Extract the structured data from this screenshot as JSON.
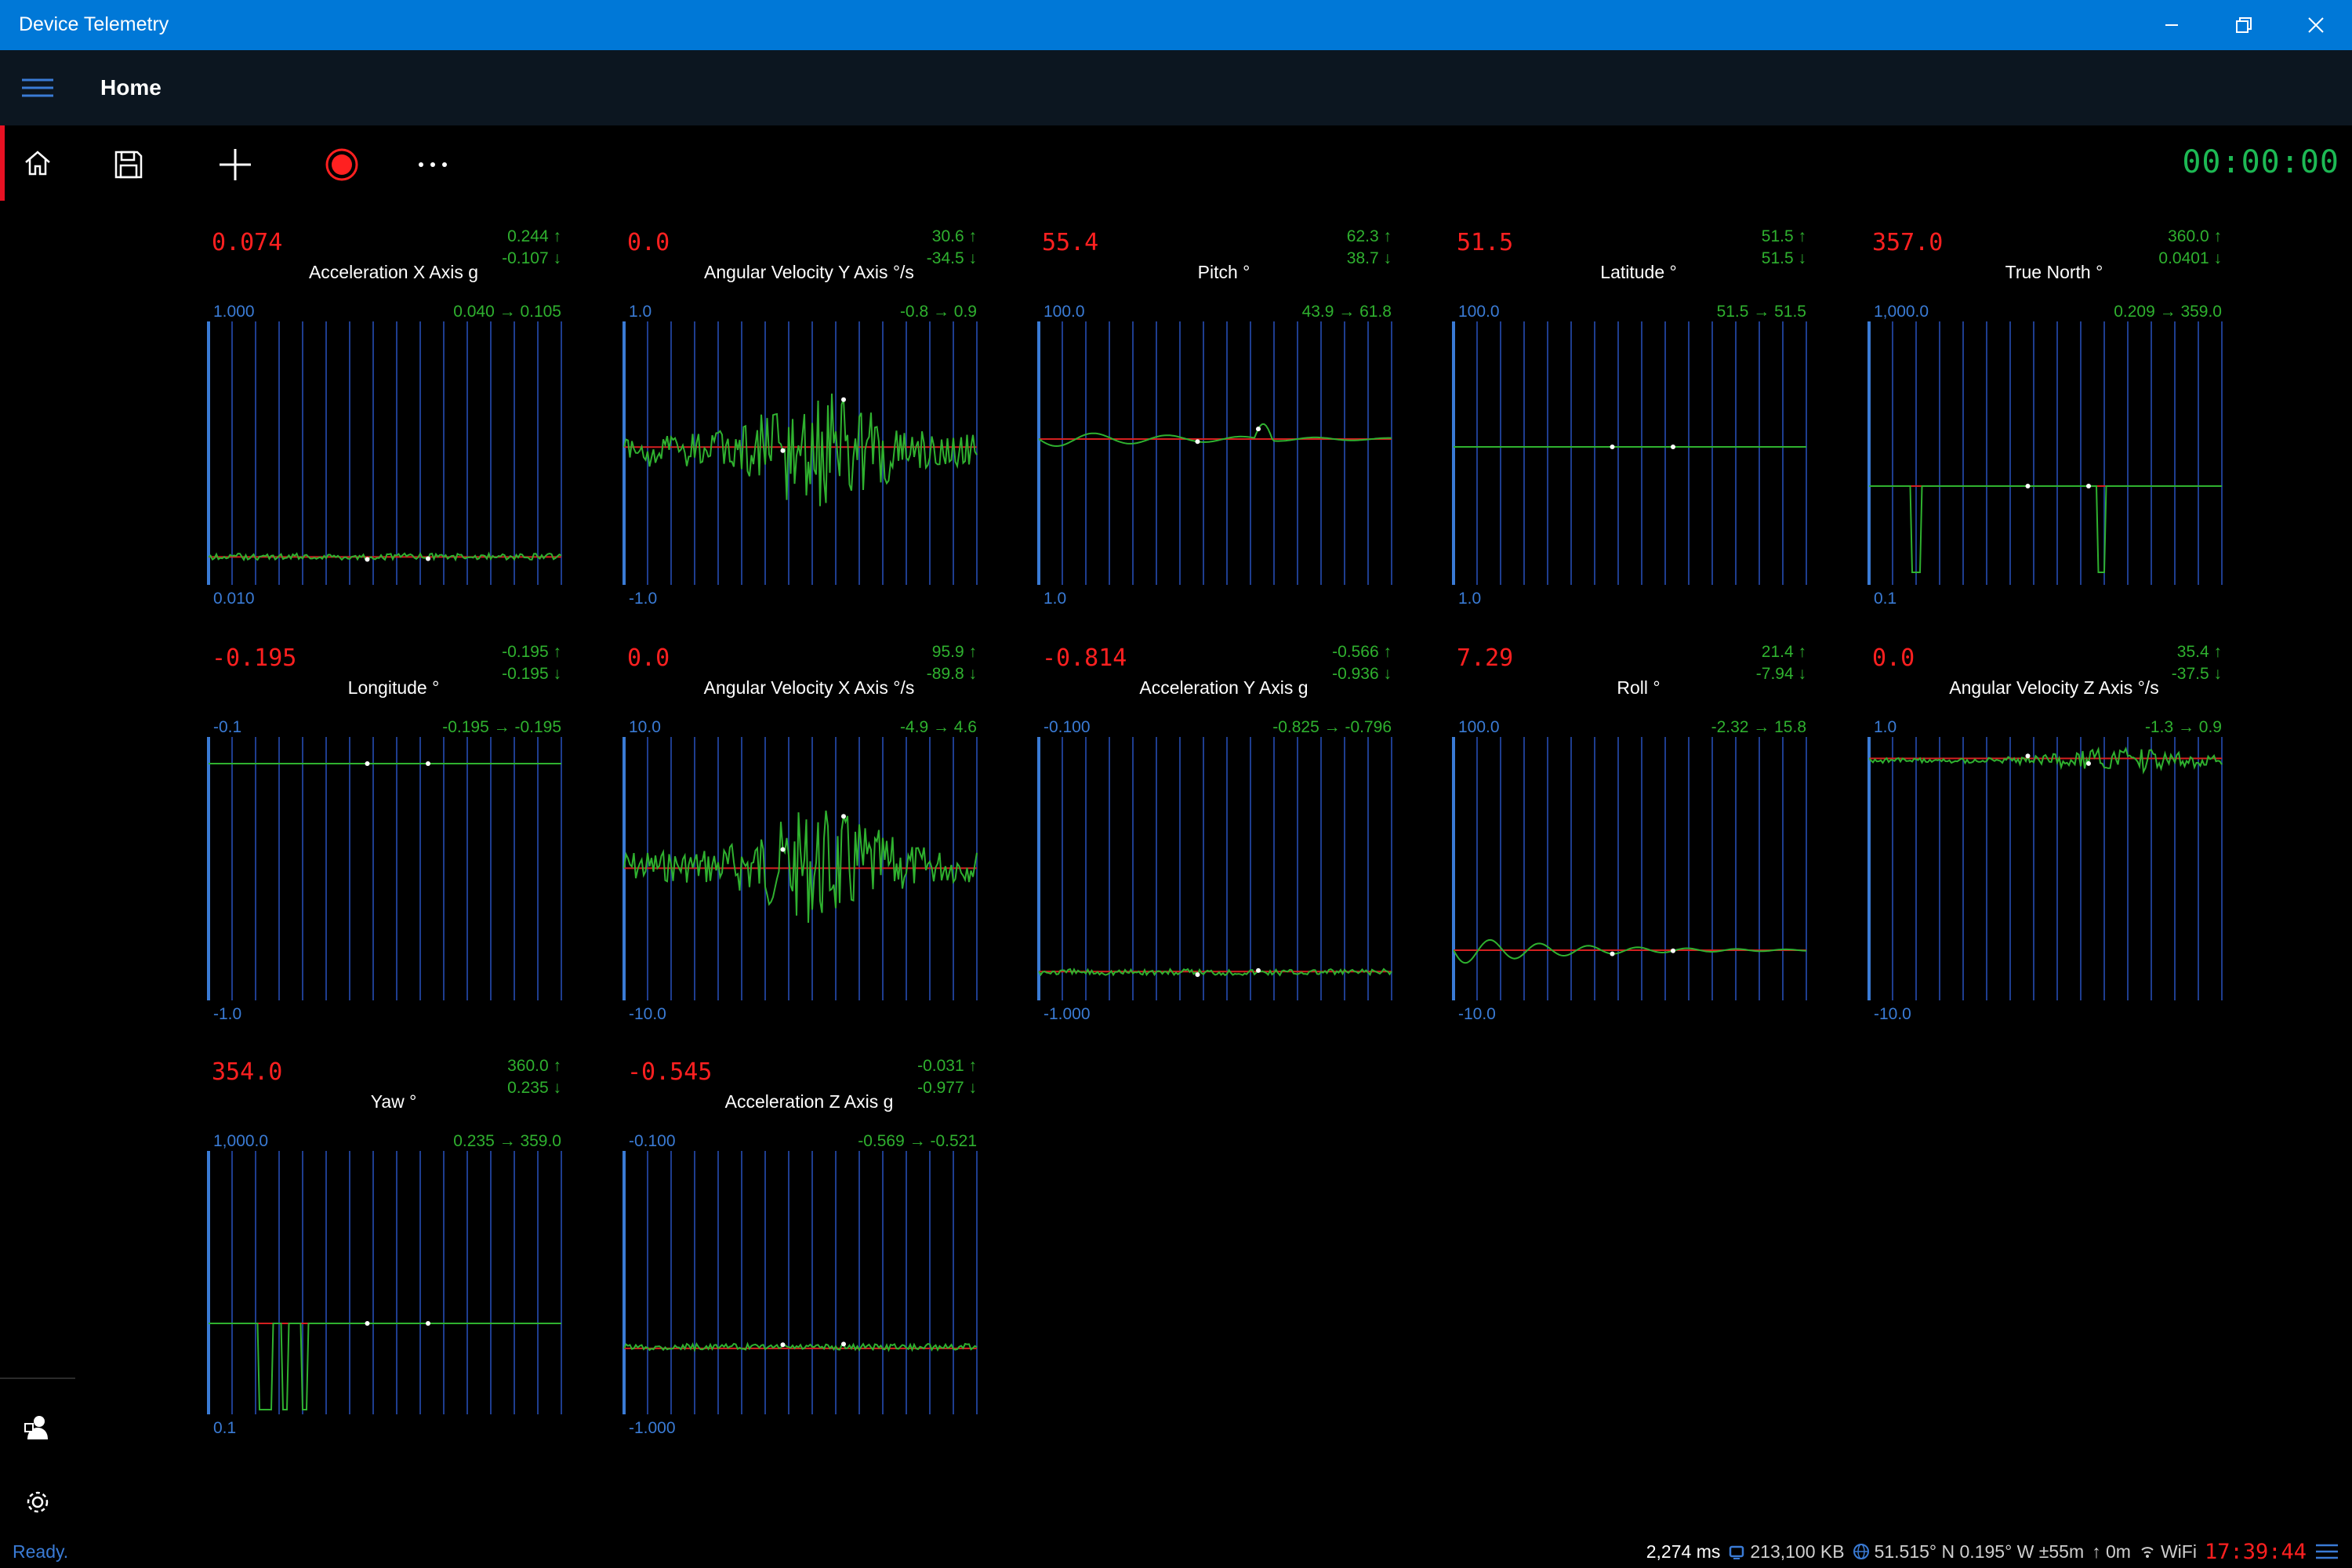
{
  "window": {
    "title": "Device Telemetry"
  },
  "nav": {
    "page_title": "Home"
  },
  "toolbar": {
    "timer": "00:00:00"
  },
  "colors": {
    "titlebar": "#0078d7",
    "navbar": "#0c1620",
    "accent_red": "#ff2020",
    "green": "#2fb12f",
    "axis_blue": "#3a7bd5"
  },
  "panels": [
    {
      "value": "0.074",
      "max": "0.244 ↑",
      "min": "-0.107 ↓",
      "title": "Acceleration X Axis g",
      "ytop": "1.000",
      "ybot": "0.010",
      "range": "0.040 → 0.105"
    },
    {
      "value": "0.0",
      "max": "30.6 ↑",
      "min": "-34.5 ↓",
      "title": "Angular Velocity Y Axis °/s",
      "ytop": "1.0",
      "ybot": "-1.0",
      "range": "-0.8 → 0.9"
    },
    {
      "value": "55.4",
      "max": "62.3 ↑",
      "min": "38.7 ↓",
      "title": "Pitch  °",
      "ytop": "100.0",
      "ybot": "1.0",
      "range": "43.9 → 61.8"
    },
    {
      "value": "51.5",
      "max": "51.5 ↑",
      "min": "51.5 ↓",
      "title": "Latitude °",
      "ytop": "100.0",
      "ybot": "1.0",
      "range": "51.5 → 51.5"
    },
    {
      "value": "357.0",
      "max": "360.0 ↑",
      "min": "0.0401 ↓",
      "title": "True North °",
      "ytop": "1,000.0",
      "ybot": "0.1",
      "range": "0.209 → 359.0"
    },
    {
      "value": "-0.195",
      "max": "-0.195 ↑",
      "min": "-0.195 ↓",
      "title": "Longitude °",
      "ytop": "-0.1",
      "ybot": "-1.0",
      "range": "-0.195 → -0.195"
    },
    {
      "value": "0.0",
      "max": "95.9 ↑",
      "min": "-89.8 ↓",
      "title": "Angular Velocity X Axis °/s",
      "ytop": "10.0",
      "ybot": "-10.0",
      "range": "-4.9 → 4.6"
    },
    {
      "value": "-0.814",
      "max": "-0.566 ↑",
      "min": "-0.936 ↓",
      "title": "Acceleration Y Axis g",
      "ytop": "-0.100",
      "ybot": "-1.000",
      "range": "-0.825 → -0.796"
    },
    {
      "value": "7.29",
      "max": "21.4 ↑",
      "min": "-7.94 ↓",
      "title": "Roll °",
      "ytop": "100.0",
      "ybot": "-10.0",
      "range": "-2.32 → 15.8"
    },
    {
      "value": "0.0",
      "max": "35.4 ↑",
      "min": "-37.5 ↓",
      "title": "Angular Velocity Z Axis °/s",
      "ytop": "1.0",
      "ybot": "-10.0",
      "range": "-1.3 → 0.9"
    },
    {
      "value": "354.0",
      "max": "360.0 ↑",
      "min": "0.235 ↓",
      "title": "Yaw °",
      "ytop": "1,000.0",
      "ybot": "0.1",
      "range": "0.235 → 359.0"
    },
    {
      "value": "-0.545",
      "max": "-0.031 ↑",
      "min": "-0.977 ↓",
      "title": "Acceleration Z Axis g",
      "ytop": "-0.100",
      "ybot": "-1.000",
      "range": "-0.569 → -0.521"
    }
  ],
  "status": {
    "text": "Ready.",
    "latency": "2,274 ms",
    "memory": "213,100 KB",
    "location": "51.515° N  0.195° W  ±55m",
    "altitude": "↑ 0m",
    "network": "WiFi",
    "clock": "17:39:44"
  }
}
